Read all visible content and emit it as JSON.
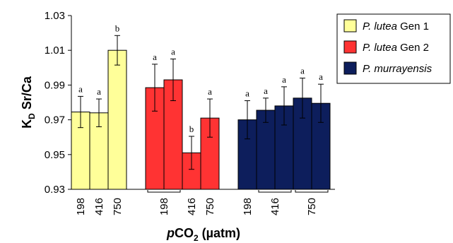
{
  "chart_data": {
    "type": "bar",
    "ylabel_main": "K",
    "ylabel_sub": "D",
    "ylabel_rest": " Sr/Ca",
    "xlabel_italic": "p",
    "xlabel_main": "CO",
    "xlabel_sub": "2",
    "xlabel_rest": " (µatm)",
    "ylim": [
      0.93,
      1.03
    ],
    "yticks": [
      "0.93",
      "0.95",
      "0.97",
      "0.99",
      "1.01",
      "1.03"
    ],
    "grid": false,
    "legend_position": "top-right",
    "series": [
      {
        "italic": "P. lutea",
        "rest": " Gen 1",
        "color": "#FFFF99",
        "groups": [
          {
            "label": "198",
            "bars": [
              {
                "value": 0.9745,
                "err": 0.009,
                "letter": "a"
              }
            ]
          },
          {
            "label": "416",
            "bars": [
              {
                "value": 0.974,
                "err": 0.008,
                "letter": "a"
              }
            ]
          },
          {
            "label": "750",
            "bars": [
              {
                "value": 1.01,
                "err": 0.0085,
                "letter": "b"
              }
            ]
          }
        ]
      },
      {
        "italic": "P. lutea",
        "rest": " Gen 2",
        "color": "#FF3333",
        "groups": [
          {
            "label": "198",
            "bars": [
              {
                "value": 0.9885,
                "err": 0.0135,
                "letter": "a"
              },
              {
                "value": 0.993,
                "err": 0.012,
                "letter": "a"
              }
            ]
          },
          {
            "label": "416",
            "bars": [
              {
                "value": 0.951,
                "err": 0.0095,
                "letter": "b"
              }
            ]
          },
          {
            "label": "750",
            "bars": [
              {
                "value": 0.971,
                "err": 0.011,
                "letter": "a"
              }
            ]
          }
        ]
      },
      {
        "italic": "P. murrayensis",
        "rest": "",
        "color": "#0D1E5C",
        "groups": [
          {
            "label": "198",
            "bars": [
              {
                "value": 0.97,
                "err": 0.011,
                "letter": "a"
              }
            ]
          },
          {
            "label": "416",
            "bars": [
              {
                "value": 0.9755,
                "err": 0.007,
                "letter": "a"
              },
              {
                "value": 0.978,
                "err": 0.011,
                "letter": "a"
              }
            ]
          },
          {
            "label": "750",
            "bars": [
              {
                "value": 0.9825,
                "err": 0.0115,
                "letter": "a"
              },
              {
                "value": 0.9795,
                "err": 0.011,
                "letter": "a"
              }
            ]
          }
        ]
      }
    ]
  }
}
